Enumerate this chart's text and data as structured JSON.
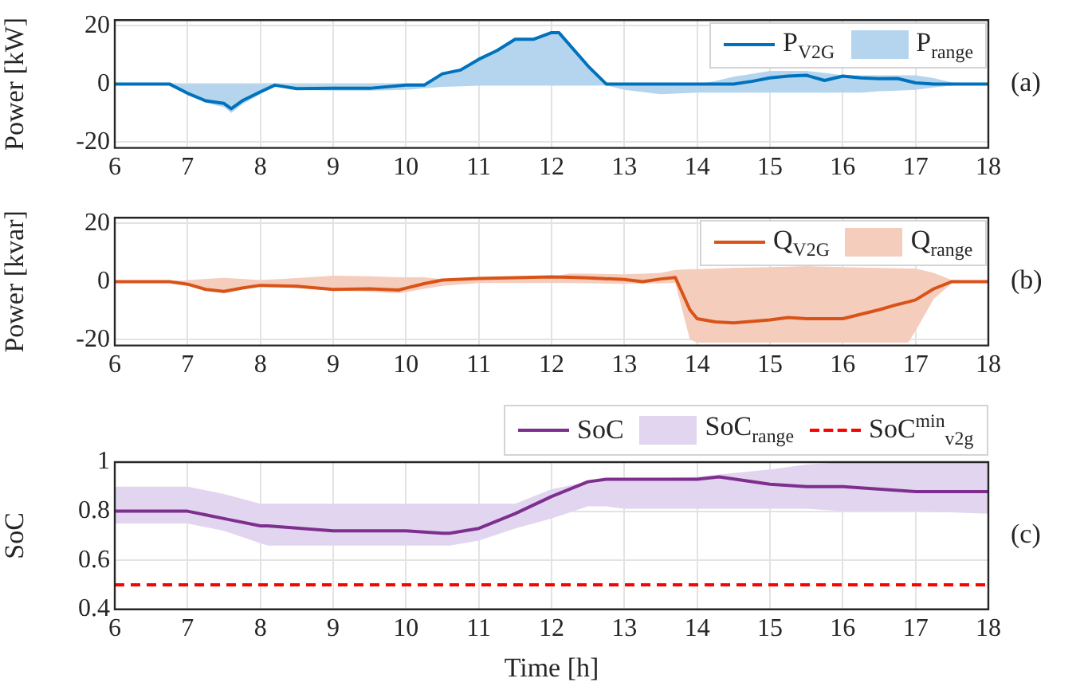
{
  "chart_data": [
    {
      "type": "line",
      "ylabel": "Power [kW]",
      "xlim": [
        6,
        18
      ],
      "xticks": [
        6,
        7,
        8,
        9,
        10,
        11,
        12,
        13,
        14,
        15,
        16,
        17,
        18
      ],
      "ylim": [
        -22,
        22
      ],
      "yticks": [
        -20,
        0,
        20
      ],
      "grid": true,
      "legend": "top right",
      "annotations": [
        "(a)"
      ],
      "series": [
        {
          "name": "P$_{V2G}$",
          "type": "line",
          "color": "#0072bd",
          "x": [
            6,
            6.75,
            7,
            7.25,
            7.5,
            7.6,
            7.75,
            8,
            8.2,
            8.5,
            9,
            9.5,
            10,
            10.25,
            10.5,
            10.75,
            11,
            11.25,
            11.5,
            11.75,
            12,
            12.1,
            12.5,
            12.75,
            13,
            13.5,
            14,
            14.25,
            14.5,
            14.75,
            15,
            15.25,
            15.5,
            15.75,
            16,
            16.25,
            16.5,
            16.75,
            17,
            17.25,
            17.5,
            18
          ],
          "values": [
            0,
            0,
            -3.2,
            -5.8,
            -6.7,
            -8.5,
            -5.8,
            -2.7,
            -0.4,
            -1.6,
            -1.5,
            -1.5,
            -0.4,
            -0.4,
            3.5,
            4.8,
            8.5,
            11.5,
            15.4,
            15.4,
            17.7,
            17.7,
            6.2,
            0,
            0,
            0,
            0,
            0,
            0,
            0.9,
            2.1,
            2.7,
            3,
            1.2,
            2.7,
            2.1,
            1.8,
            1.9,
            0.4,
            0,
            0,
            0
          ],
          "upper": [
            0,
            0,
            0,
            0,
            0,
            0,
            0,
            0,
            0,
            0,
            0,
            0,
            0,
            0,
            3.5,
            4.8,
            8.5,
            11.5,
            15.4,
            15.4,
            17.7,
            17.7,
            6.2,
            0,
            0,
            0,
            0,
            1,
            2.5,
            3.5,
            4.5,
            4.5,
            4.5,
            3.8,
            3,
            3,
            3,
            3,
            3,
            2,
            0.5,
            0
          ],
          "lower": [
            0,
            0,
            -3.5,
            -6.5,
            -8,
            -10,
            -7,
            -3.5,
            -0.7,
            -2,
            -2.3,
            -2.3,
            -2,
            -1.5,
            -1,
            -0.8,
            -0.6,
            -0.6,
            -0.6,
            -0.6,
            -0.6,
            -0.6,
            -0.6,
            -0.5,
            -2,
            -3.5,
            -3,
            -3,
            -3,
            -3,
            -3,
            -3,
            -3,
            -3,
            -3,
            -3,
            -2.5,
            -2.3,
            -2,
            -1.2,
            -0.5,
            0
          ]
        },
        {
          "name": "P$_{range}$",
          "type": "area",
          "color": "#b4d5ed"
        }
      ]
    },
    {
      "type": "line",
      "ylabel": "Power [kvar]",
      "xlim": [
        6,
        18
      ],
      "xticks": [
        6,
        7,
        8,
        9,
        10,
        11,
        12,
        13,
        14,
        15,
        16,
        17,
        18
      ],
      "ylim": [
        -22,
        22
      ],
      "yticks": [
        -20,
        0,
        20
      ],
      "grid": true,
      "legend": "top right",
      "annotations": [
        "(b)"
      ],
      "series": [
        {
          "name": "Q$_{V2G}$",
          "type": "line",
          "color": "#d95319",
          "x": [
            6,
            6.75,
            7,
            7.25,
            7.5,
            7.75,
            8,
            8.5,
            9,
            9.5,
            9.9,
            10.25,
            10.5,
            11,
            12,
            12.25,
            12.5,
            13,
            13.25,
            13.5,
            13.7,
            13.9,
            14,
            14.25,
            14.5,
            15,
            15.25,
            15.5,
            16,
            16.5,
            16.75,
            16.9,
            17,
            17.25,
            17.5,
            18
          ],
          "values": [
            0,
            0,
            -0.9,
            -2.7,
            -3.4,
            -2.2,
            -1.3,
            -1.6,
            -2.7,
            -2.5,
            -2.9,
            -0.7,
            0.5,
            1.1,
            1.6,
            1.5,
            1.3,
            0.7,
            0,
            0.9,
            1.4,
            -9.7,
            -12.8,
            -13.9,
            -14.2,
            -13.2,
            -12.4,
            -12.8,
            -12.8,
            -9.7,
            -7.9,
            -7,
            -6.3,
            -2.5,
            0,
            0
          ],
          "upper": [
            0,
            0,
            0.5,
            0.9,
            1.3,
            0.9,
            0.5,
            1.2,
            2,
            1.8,
            1.5,
            1.5,
            0.8,
            1.2,
            1.6,
            2.8,
            2.7,
            2.5,
            2.7,
            3,
            4,
            4.2,
            4.3,
            4.5,
            4.7,
            5,
            5.1,
            5.3,
            5,
            4.7,
            4.6,
            4.5,
            4.5,
            3,
            0.5,
            0
          ],
          "lower": [
            0,
            0,
            -1,
            -2.8,
            -4,
            -2.7,
            -1.5,
            -2.2,
            -3,
            -3.5,
            -4,
            -2.5,
            -1.5,
            -0.5,
            -0.5,
            -0.5,
            -0.6,
            -0.8,
            -0.7,
            -0.6,
            -0.5,
            -20,
            -21,
            -21,
            -21,
            -21,
            -21,
            -21,
            -21,
            -21,
            -21,
            -21,
            -17,
            -6,
            -0.5,
            0
          ]
        },
        {
          "name": "Q$_{range}$",
          "type": "area",
          "color": "#f5cdbd"
        }
      ]
    },
    {
      "type": "line",
      "ylabel": "SoC",
      "xlabel": "Time [h]",
      "xlim": [
        6,
        18
      ],
      "xticks": [
        6,
        7,
        8,
        9,
        10,
        11,
        12,
        13,
        14,
        15,
        16,
        17,
        18
      ],
      "ylim": [
        0.4,
        1
      ],
      "yticks": [
        0.4,
        0.6,
        0.8,
        1
      ],
      "grid": true,
      "legend": "top",
      "annotations": [
        "(c)"
      ],
      "ref_lines": [
        {
          "axis": "y",
          "value": 0.5,
          "label": "SoC$^{min}$$_{v2g}$",
          "color": "#ff0000",
          "line_style": "dashed"
        }
      ],
      "series": [
        {
          "name": "SoC",
          "type": "line",
          "color": "#7e2f8e",
          "x": [
            6,
            7,
            7.5,
            8,
            8.1,
            9,
            10,
            10.5,
            10.6,
            11,
            11.5,
            12,
            12.5,
            12.75,
            13,
            14,
            14.3,
            15,
            15.5,
            16,
            17,
            18
          ],
          "values": [
            0.8,
            0.8,
            0.77,
            0.74,
            0.74,
            0.72,
            0.72,
            0.71,
            0.71,
            0.73,
            0.79,
            0.86,
            0.92,
            0.93,
            0.93,
            0.93,
            0.94,
            0.91,
            0.9,
            0.9,
            0.88,
            0.88
          ],
          "upper": [
            0.9,
            0.9,
            0.87,
            0.83,
            0.83,
            0.83,
            0.83,
            0.83,
            0.83,
            0.83,
            0.83,
            0.89,
            0.92,
            0.93,
            0.93,
            0.94,
            0.95,
            0.97,
            0.99,
            1,
            1,
            1
          ],
          "lower": [
            0.75,
            0.75,
            0.72,
            0.67,
            0.66,
            0.66,
            0.66,
            0.66,
            0.66,
            0.68,
            0.73,
            0.77,
            0.82,
            0.82,
            0.81,
            0.81,
            0.81,
            0.81,
            0.81,
            0.8,
            0.8,
            0.79
          ]
        },
        {
          "name": "SoC$_{range}$",
          "type": "area",
          "color": "#e1d5f0"
        }
      ]
    }
  ]
}
